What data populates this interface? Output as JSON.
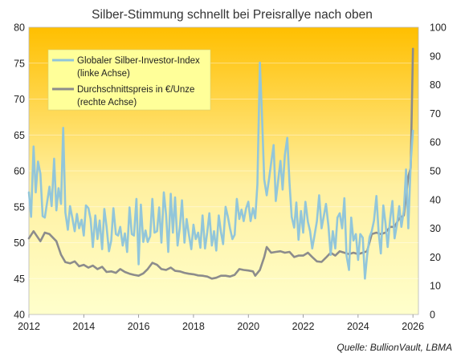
{
  "chart_data": {
    "type": "line",
    "title": "Silber-Stimmung schnellt bei Preisrallye nach oben",
    "source": "Quelle: BullionVault, LBMA",
    "x_ticks": [
      "2012",
      "2014",
      "2016",
      "2018",
      "2020",
      "2022",
      "2024",
      "2026"
    ],
    "x_range": [
      2012,
      2026.2
    ],
    "y_left": {
      "range": [
        40,
        80
      ],
      "ticks": [
        "40",
        "45",
        "50",
        "55",
        "60",
        "65",
        "70",
        "75",
        "80"
      ]
    },
    "y_right": {
      "range": [
        0,
        100
      ],
      "ticks": [
        "0",
        "10",
        "20",
        "30",
        "40",
        "50",
        "60",
        "70",
        "80",
        "90",
        "100"
      ]
    },
    "background_gradient": [
      "#ffbf00",
      "#fff0a0",
      "#ffffcc"
    ],
    "legend": {
      "placement": "top-left",
      "background": "#ffff99"
    },
    "series": [
      {
        "name": "Globaler Silber-Investor-Index",
        "name_line2": "(linke Achse)",
        "axis": "left",
        "color": "#92c6da",
        "points": [
          [
            2012.0,
            57.0
          ],
          [
            2012.08,
            53.6
          ],
          [
            2012.17,
            63.4
          ],
          [
            2012.25,
            57.0
          ],
          [
            2012.33,
            61.3
          ],
          [
            2012.42,
            59.6
          ],
          [
            2012.5,
            53.7
          ],
          [
            2012.58,
            53.5
          ],
          [
            2012.67,
            55.8
          ],
          [
            2012.75,
            57.8
          ],
          [
            2012.83,
            55.1
          ],
          [
            2012.92,
            61.7
          ],
          [
            2013.0,
            54.5
          ],
          [
            2013.08,
            57.6
          ],
          [
            2013.17,
            55.4
          ],
          [
            2013.25,
            66.0
          ],
          [
            2013.33,
            54.2
          ],
          [
            2013.42,
            51.8
          ],
          [
            2013.5,
            55.1
          ],
          [
            2013.58,
            53.5
          ],
          [
            2013.67,
            51.6
          ],
          [
            2013.75,
            54.0
          ],
          [
            2013.83,
            52.0
          ],
          [
            2013.92,
            53.2
          ],
          [
            2014.0,
            51.0
          ],
          [
            2014.08,
            55.2
          ],
          [
            2014.17,
            54.8
          ],
          [
            2014.25,
            53.3
          ],
          [
            2014.33,
            49.4
          ],
          [
            2014.42,
            53.8
          ],
          [
            2014.5,
            50.5
          ],
          [
            2014.58,
            53.1
          ],
          [
            2014.67,
            49.1
          ],
          [
            2014.75,
            54.7
          ],
          [
            2014.83,
            52.2
          ],
          [
            2014.92,
            48.8
          ],
          [
            2015.0,
            50.3
          ],
          [
            2015.08,
            54.8
          ],
          [
            2015.17,
            51.2
          ],
          [
            2015.25,
            51.0
          ],
          [
            2015.33,
            52.2
          ],
          [
            2015.42,
            49.6
          ],
          [
            2015.5,
            51.3
          ],
          [
            2015.58,
            48.7
          ],
          [
            2015.67,
            54.9
          ],
          [
            2015.75,
            51.2
          ],
          [
            2015.83,
            51.0
          ],
          [
            2015.92,
            56.1
          ],
          [
            2016.0,
            47.0
          ],
          [
            2016.08,
            55.3
          ],
          [
            2016.17,
            50.1
          ],
          [
            2016.25,
            51.7
          ],
          [
            2016.33,
            50.1
          ],
          [
            2016.42,
            50.9
          ],
          [
            2016.5,
            56.1
          ],
          [
            2016.58,
            51.4
          ],
          [
            2016.67,
            51.6
          ],
          [
            2016.75,
            54.9
          ],
          [
            2016.83,
            50.0
          ],
          [
            2016.92,
            57.0
          ],
          [
            2017.0,
            53.9
          ],
          [
            2017.08,
            48.7
          ],
          [
            2017.17,
            56.8
          ],
          [
            2017.25,
            51.4
          ],
          [
            2017.33,
            56.3
          ],
          [
            2017.42,
            49.6
          ],
          [
            2017.5,
            52.1
          ],
          [
            2017.58,
            55.9
          ],
          [
            2017.67,
            50.0
          ],
          [
            2017.75,
            53.3
          ],
          [
            2017.83,
            51.2
          ],
          [
            2017.92,
            49.1
          ],
          [
            2018.0,
            52.5
          ],
          [
            2018.08,
            50.5
          ],
          [
            2018.17,
            51.4
          ],
          [
            2018.25,
            49.3
          ],
          [
            2018.33,
            53.8
          ],
          [
            2018.42,
            49.2
          ],
          [
            2018.5,
            51.4
          ],
          [
            2018.58,
            54.1
          ],
          [
            2018.67,
            49.6
          ],
          [
            2018.75,
            51.6
          ],
          [
            2018.83,
            48.9
          ],
          [
            2018.92,
            53.8
          ],
          [
            2019.0,
            51.5
          ],
          [
            2019.08,
            49.8
          ],
          [
            2019.17,
            55.0
          ],
          [
            2019.25,
            53.7
          ],
          [
            2019.33,
            52.0
          ],
          [
            2019.42,
            50.5
          ],
          [
            2019.5,
            51.1
          ],
          [
            2019.58,
            56.1
          ],
          [
            2019.67,
            53.3
          ],
          [
            2019.75,
            54.6
          ],
          [
            2019.83,
            53.0
          ],
          [
            2019.92,
            54.8
          ],
          [
            2020.0,
            55.7
          ],
          [
            2020.08,
            53.0
          ],
          [
            2020.17,
            54.8
          ],
          [
            2020.25,
            53.4
          ],
          [
            2020.33,
            58.1
          ],
          [
            2020.42,
            75.1
          ],
          [
            2020.5,
            67.5
          ],
          [
            2020.58,
            58.8
          ],
          [
            2020.67,
            56.6
          ],
          [
            2020.75,
            58.8
          ],
          [
            2020.83,
            61.1
          ],
          [
            2020.92,
            63.6
          ],
          [
            2021.0,
            55.8
          ],
          [
            2021.08,
            58.4
          ],
          [
            2021.17,
            61.4
          ],
          [
            2021.25,
            57.4
          ],
          [
            2021.33,
            62.2
          ],
          [
            2021.42,
            64.6
          ],
          [
            2021.5,
            58.3
          ],
          [
            2021.58,
            53.6
          ],
          [
            2021.67,
            52.1
          ],
          [
            2021.75,
            55.6
          ],
          [
            2021.83,
            50.4
          ],
          [
            2021.92,
            54.4
          ],
          [
            2022.0,
            51.4
          ],
          [
            2022.08,
            55.7
          ],
          [
            2022.17,
            52.9
          ],
          [
            2022.25,
            51.6
          ],
          [
            2022.33,
            49.2
          ],
          [
            2022.42,
            51.2
          ],
          [
            2022.5,
            53.0
          ],
          [
            2022.58,
            56.6
          ],
          [
            2022.67,
            52.0
          ],
          [
            2022.75,
            53.7
          ],
          [
            2022.83,
            55.4
          ],
          [
            2022.92,
            52.3
          ],
          [
            2023.0,
            48.3
          ],
          [
            2023.08,
            51.6
          ],
          [
            2023.17,
            49.2
          ],
          [
            2023.25,
            53.5
          ],
          [
            2023.33,
            54.1
          ],
          [
            2023.42,
            52.0
          ],
          [
            2023.5,
            56.2
          ],
          [
            2023.58,
            48.2
          ],
          [
            2023.67,
            46.2
          ],
          [
            2023.75,
            53.5
          ],
          [
            2023.83,
            50.3
          ],
          [
            2023.92,
            51.2
          ],
          [
            2024.0,
            47.6
          ],
          [
            2024.08,
            51.2
          ],
          [
            2024.17,
            50.7
          ],
          [
            2024.25,
            45.0
          ],
          [
            2024.33,
            48.2
          ],
          [
            2024.42,
            50.8
          ],
          [
            2024.5,
            51.6
          ],
          [
            2024.58,
            53.1
          ],
          [
            2024.67,
            56.5
          ],
          [
            2024.75,
            51.4
          ],
          [
            2024.83,
            48.5
          ],
          [
            2024.92,
            55.2
          ],
          [
            2025.0,
            52.7
          ],
          [
            2025.08,
            49.4
          ],
          [
            2025.17,
            53.3
          ],
          [
            2025.25,
            55.8
          ],
          [
            2025.33,
            50.6
          ],
          [
            2025.42,
            52.6
          ],
          [
            2025.5,
            55.1
          ],
          [
            2025.58,
            52.2
          ],
          [
            2025.67,
            54.5
          ],
          [
            2025.75,
            60.2
          ],
          [
            2025.83,
            52.0
          ],
          [
            2025.92,
            61.1
          ],
          [
            2026.0,
            65.6
          ]
        ]
      },
      {
        "name": "Durchschnittspreis in €/Unze",
        "name_line2": "(rechte Achse)",
        "axis": "right",
        "color": "#8c8c8c",
        "points": [
          [
            2012.0,
            26.5
          ],
          [
            2012.17,
            29.0
          ],
          [
            2012.42,
            25.5
          ],
          [
            2012.58,
            28.5
          ],
          [
            2012.75,
            28.0
          ],
          [
            2013.0,
            25.5
          ],
          [
            2013.17,
            20.8
          ],
          [
            2013.33,
            18.2
          ],
          [
            2013.5,
            17.8
          ],
          [
            2013.67,
            18.5
          ],
          [
            2013.83,
            16.8
          ],
          [
            2014.0,
            17.3
          ],
          [
            2014.17,
            16.3
          ],
          [
            2014.33,
            17.0
          ],
          [
            2014.5,
            15.8
          ],
          [
            2014.67,
            16.6
          ],
          [
            2014.83,
            14.8
          ],
          [
            2015.0,
            15.0
          ],
          [
            2015.17,
            14.5
          ],
          [
            2015.33,
            15.8
          ],
          [
            2015.5,
            14.8
          ],
          [
            2015.67,
            14.2
          ],
          [
            2015.83,
            13.8
          ],
          [
            2016.0,
            13.5
          ],
          [
            2016.17,
            14.3
          ],
          [
            2016.33,
            15.8
          ],
          [
            2016.5,
            18.0
          ],
          [
            2016.67,
            17.3
          ],
          [
            2016.83,
            15.8
          ],
          [
            2017.0,
            15.5
          ],
          [
            2017.17,
            16.3
          ],
          [
            2017.33,
            15.2
          ],
          [
            2017.5,
            15.0
          ],
          [
            2017.67,
            14.5
          ],
          [
            2017.83,
            14.2
          ],
          [
            2018.0,
            14.0
          ],
          [
            2018.17,
            13.6
          ],
          [
            2018.33,
            13.5
          ],
          [
            2018.5,
            13.2
          ],
          [
            2018.67,
            12.5
          ],
          [
            2018.83,
            12.8
          ],
          [
            2019.0,
            13.5
          ],
          [
            2019.17,
            13.5
          ],
          [
            2019.33,
            13.2
          ],
          [
            2019.5,
            13.8
          ],
          [
            2019.67,
            15.8
          ],
          [
            2019.83,
            15.5
          ],
          [
            2020.0,
            15.3
          ],
          [
            2020.17,
            15.0
          ],
          [
            2020.25,
            13.5
          ],
          [
            2020.42,
            15.5
          ],
          [
            2020.58,
            20.0
          ],
          [
            2020.67,
            23.5
          ],
          [
            2020.83,
            21.5
          ],
          [
            2021.0,
            21.8
          ],
          [
            2021.17,
            22.0
          ],
          [
            2021.33,
            21.5
          ],
          [
            2021.5,
            21.8
          ],
          [
            2021.67,
            20.0
          ],
          [
            2021.83,
            20.5
          ],
          [
            2022.0,
            20.5
          ],
          [
            2022.17,
            21.5
          ],
          [
            2022.33,
            20.0
          ],
          [
            2022.5,
            18.5
          ],
          [
            2022.67,
            18.3
          ],
          [
            2022.83,
            19.8
          ],
          [
            2023.0,
            21.5
          ],
          [
            2023.17,
            20.5
          ],
          [
            2023.33,
            22.0
          ],
          [
            2023.5,
            21.5
          ],
          [
            2023.67,
            21.0
          ],
          [
            2023.83,
            21.5
          ],
          [
            2024.0,
            21.0
          ],
          [
            2024.17,
            21.5
          ],
          [
            2024.33,
            22.0
          ],
          [
            2024.5,
            28.0
          ],
          [
            2024.67,
            28.5
          ],
          [
            2024.83,
            28.0
          ],
          [
            2025.0,
            28.5
          ],
          [
            2025.17,
            30.5
          ],
          [
            2025.33,
            30.5
          ],
          [
            2025.5,
            33.5
          ],
          [
            2025.67,
            34.5
          ],
          [
            2025.83,
            48.0
          ],
          [
            2025.92,
            51.0
          ],
          [
            2026.0,
            92.5
          ]
        ]
      }
    ]
  }
}
